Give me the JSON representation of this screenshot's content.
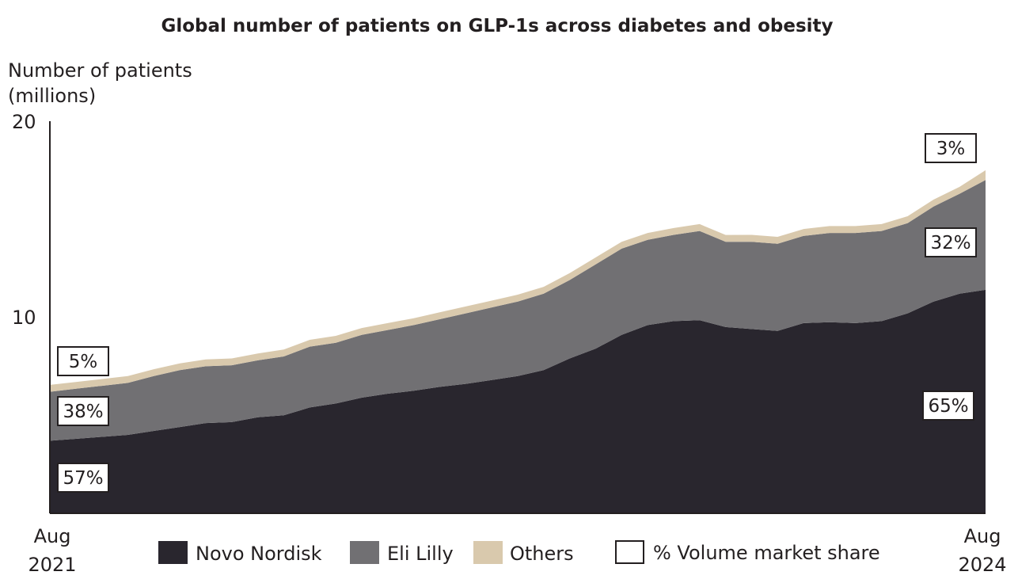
{
  "chart_data": {
    "type": "area",
    "stacked": true,
    "title": "Global number of patients on GLP-1s across diabetes and obesity",
    "ylabel_line1": "Number of patients",
    "ylabel_line2": "(millions)",
    "ylim": [
      0,
      20
    ],
    "yticks": [
      "20",
      "10"
    ],
    "x_start_month": "Aug",
    "x_start_year": "2021",
    "x_end_month": "Aug",
    "x_end_year": "2024",
    "x": [
      "2021-08",
      "2021-09",
      "2021-10",
      "2021-11",
      "2021-12",
      "2022-01",
      "2022-02",
      "2022-03",
      "2022-04",
      "2022-05",
      "2022-06",
      "2022-07",
      "2022-08",
      "2022-09",
      "2022-10",
      "2022-11",
      "2022-12",
      "2023-01",
      "2023-02",
      "2023-03",
      "2023-04",
      "2023-05",
      "2023-06",
      "2023-07",
      "2023-08",
      "2023-09",
      "2023-10",
      "2023-11",
      "2023-12",
      "2024-01",
      "2024-02",
      "2024-03",
      "2024-04",
      "2024-05",
      "2024-06",
      "2024-07",
      "2024-08"
    ],
    "series": [
      {
        "name": "Novo Nordisk",
        "color": "#29262e",
        "values": [
          3.7,
          3.8,
          3.9,
          4.0,
          4.2,
          4.4,
          4.6,
          4.65,
          4.9,
          5.0,
          5.4,
          5.6,
          5.9,
          6.1,
          6.25,
          6.45,
          6.6,
          6.8,
          7.0,
          7.3,
          7.9,
          8.4,
          9.1,
          9.6,
          9.8,
          9.85,
          9.5,
          9.4,
          9.3,
          9.7,
          9.75,
          9.7,
          9.8,
          10.2,
          10.8,
          11.2,
          11.4
        ]
      },
      {
        "name": "Eli Lilly",
        "color": "#717073",
        "values": [
          2.5,
          2.55,
          2.6,
          2.65,
          2.8,
          2.9,
          2.9,
          2.9,
          2.9,
          3.0,
          3.1,
          3.1,
          3.2,
          3.25,
          3.35,
          3.45,
          3.6,
          3.7,
          3.8,
          3.9,
          4.0,
          4.3,
          4.4,
          4.35,
          4.4,
          4.55,
          4.35,
          4.45,
          4.45,
          4.45,
          4.55,
          4.6,
          4.6,
          4.6,
          4.85,
          5.1,
          5.6
        ]
      },
      {
        "name": "Others",
        "color": "#d9c9ad",
        "values": [
          0.35,
          0.35,
          0.35,
          0.35,
          0.35,
          0.35,
          0.35,
          0.35,
          0.35,
          0.35,
          0.35,
          0.35,
          0.35,
          0.35,
          0.35,
          0.35,
          0.35,
          0.35,
          0.35,
          0.35,
          0.35,
          0.35,
          0.35,
          0.35,
          0.35,
          0.35,
          0.35,
          0.35,
          0.35,
          0.35,
          0.35,
          0.35,
          0.35,
          0.35,
          0.35,
          0.35,
          0.5
        ]
      }
    ],
    "share_labels": {
      "start": {
        "novo": "57%",
        "lilly": "38%",
        "others": "5%"
      },
      "end": {
        "novo": "65%",
        "lilly": "32%",
        "others": "3%"
      }
    },
    "legend": {
      "items": [
        {
          "label": "Novo Nordisk",
          "color": "#29262e"
        },
        {
          "label": "Eli Lilly",
          "color": "#717073"
        },
        {
          "label": "Others",
          "color": "#d9c9ad"
        }
      ],
      "share_item": {
        "label": "% Volume market share"
      },
      "position": "bottom"
    },
    "grid": false
  }
}
